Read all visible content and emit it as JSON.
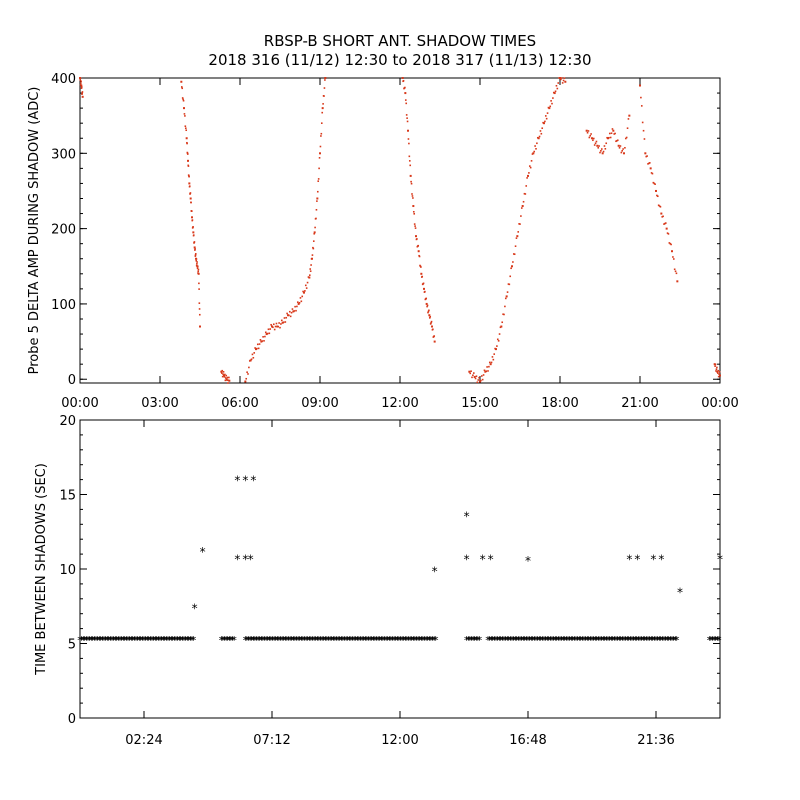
{
  "title": "RBSP-B SHORT ANT. SHADOW TIMES",
  "subtitle": "2018 316 (11/12) 12:30 to 2018 317 (11/13) 12:30",
  "chart_data": [
    {
      "type": "scatter",
      "ylabel": "Probe 5 DELTA AMP DURING SHADOW (ADC)",
      "xlabel": "",
      "x_unit": "hours",
      "xlim": [
        0,
        24
      ],
      "ylim": [
        -5,
        400
      ],
      "xticks": [
        0,
        3,
        6,
        9,
        12,
        15,
        18,
        21,
        24
      ],
      "xtick_labels": [
        "00:00",
        "03:00",
        "06:00",
        "09:00",
        "12:00",
        "15:00",
        "18:00",
        "21:00",
        "00:00"
      ],
      "yticks": [
        0,
        100,
        200,
        300,
        400
      ],
      "ytick_labels": [
        "0",
        "100",
        "200",
        "300",
        "400"
      ],
      "color": "#d8391b",
      "series": [
        {
          "x": [
            0.0,
            0.05,
            0.1,
            3.8,
            3.9,
            4.0,
            4.05,
            4.1,
            4.15,
            4.2,
            4.25,
            4.3,
            4.35,
            4.4,
            4.45,
            4.5,
            5.3,
            5.4,
            5.5,
            5.6,
            6.2,
            6.4,
            6.6,
            6.8,
            7.0,
            7.2,
            7.4,
            7.6,
            7.8,
            8.0,
            8.2,
            8.4,
            8.6,
            8.7,
            8.8,
            8.9,
            9.0,
            9.1,
            9.2,
            12.1,
            12.2,
            12.3,
            12.4,
            12.5,
            12.6,
            12.7,
            12.8,
            12.9,
            13.0,
            13.1,
            13.2,
            13.3,
            14.6,
            14.8,
            15.0,
            15.2,
            15.4,
            15.6,
            15.8,
            16.0,
            16.2,
            16.4,
            16.6,
            16.8,
            17.0,
            17.2,
            17.4,
            17.6,
            17.8,
            18.0,
            18.2,
            19.0,
            19.2,
            19.4,
            19.6,
            19.8,
            20.0,
            20.2,
            20.4,
            20.6,
            21.0,
            21.2,
            21.4,
            21.6,
            21.8,
            22.0,
            22.2,
            22.4,
            23.8,
            23.9,
            24.0
          ],
          "y": [
            400,
            390,
            375,
            395,
            360,
            320,
            290,
            260,
            240,
            215,
            195,
            175,
            160,
            150,
            140,
            70,
            10,
            5,
            0,
            -2,
            -3,
            25,
            40,
            50,
            60,
            70,
            70,
            75,
            85,
            90,
            100,
            115,
            135,
            160,
            195,
            240,
            300,
            360,
            400,
            400,
            380,
            330,
            270,
            230,
            190,
            170,
            140,
            120,
            100,
            85,
            70,
            50,
            10,
            3,
            -3,
            10,
            20,
            40,
            70,
            110,
            150,
            190,
            230,
            270,
            300,
            320,
            340,
            360,
            380,
            400,
            395,
            330,
            320,
            310,
            300,
            320,
            330,
            310,
            300,
            350,
            390,
            300,
            280,
            250,
            220,
            200,
            170,
            130,
            20,
            10,
            5
          ]
        }
      ]
    },
    {
      "type": "scatter",
      "ylabel": "TIME BETWEEN SHADOWS (SEC)",
      "xlabel": "",
      "x_unit": "hours",
      "xlim": [
        0,
        24
      ],
      "ylim": [
        0,
        20
      ],
      "xticks": [
        2.4,
        7.2,
        12.0,
        16.8,
        21.6
      ],
      "xtick_labels": [
        "02:24",
        "07:12",
        "12:00",
        "16:48",
        "21:36"
      ],
      "yticks": [
        0,
        5,
        10,
        15,
        20
      ],
      "ytick_labels": [
        "0",
        "5",
        "10",
        "15",
        "20"
      ],
      "color": "#000000",
      "marker": "*",
      "series": [
        {
          "x": [
            4.3,
            4.6,
            5.9,
            6.2,
            6.5,
            5.9,
            6.2,
            6.4,
            13.3,
            14.5,
            14.5,
            15.1,
            15.4,
            16.8,
            20.6,
            20.9,
            21.5,
            21.8,
            22.5,
            24.0
          ],
          "y": [
            7.4,
            11.2,
            16.0,
            16.0,
            16.0,
            10.7,
            10.7,
            10.7,
            9.9,
            13.6,
            10.7,
            10.7,
            10.7,
            10.6,
            10.7,
            10.7,
            10.7,
            10.7,
            8.5,
            10.7
          ]
        }
      ],
      "baseline": {
        "y": 5.3,
        "segments": [
          [
            0.0,
            4.3
          ],
          [
            5.3,
            5.8
          ],
          [
            6.2,
            13.4
          ],
          [
            14.5,
            15.0
          ],
          [
            15.3,
            22.4
          ],
          [
            23.6,
            24.0
          ]
        ]
      }
    }
  ]
}
